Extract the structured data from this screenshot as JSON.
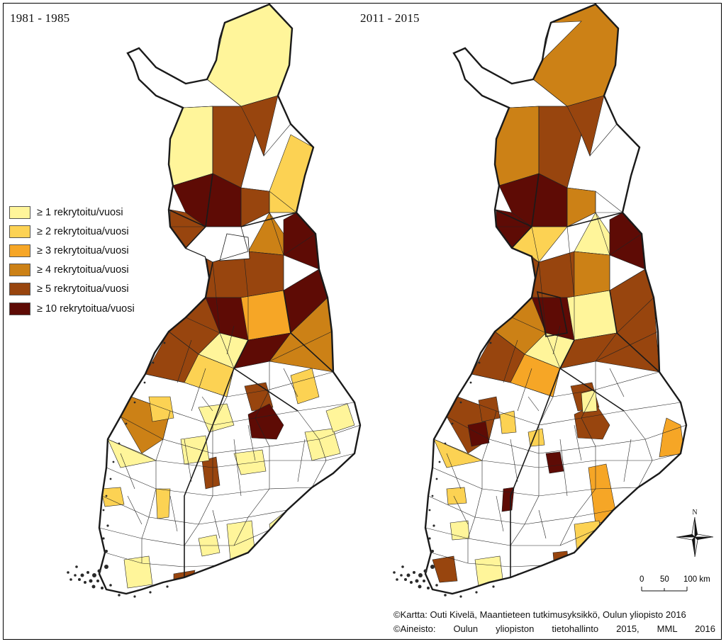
{
  "panels": [
    {
      "title": "1981 - 1985"
    },
    {
      "title": "2011 - 2015"
    }
  ],
  "legend": {
    "items": [
      {
        "label": "≥ 1 rekrytoitu/vuosi",
        "color": "#FFF59A"
      },
      {
        "label": "≥ 2 rekrytoitua/vuosi",
        "color": "#FCD253"
      },
      {
        "label": "≥ 3 rekrytoitua/vuosi",
        "color": "#F6A626"
      },
      {
        "label": "≥ 4 rekrytoitua/vuosi",
        "color": "#CC8116"
      },
      {
        "label": "≥ 5 rekrytoitua/vuosi",
        "color": "#98450E"
      },
      {
        "label": "≥ 10 rekrytoitua/vuosi",
        "color": "#5E0B05"
      }
    ]
  },
  "north_arrow": {
    "label": "N"
  },
  "scale_bar": {
    "ticks": [
      "0",
      "50",
      "100 km"
    ]
  },
  "credits": {
    "line1": "©Kartta: Outi Kivelä, Maantieteen tutkimusyksikkö, Oulun yliopisto 2016",
    "line2": "©Aineisto:   Oulun   yliopiston   tietohallinto   2015,   MML   2016"
  },
  "colors": {
    "border": "#000000",
    "boundary": "#1a1a1a",
    "unshaded": "#ffffff"
  }
}
